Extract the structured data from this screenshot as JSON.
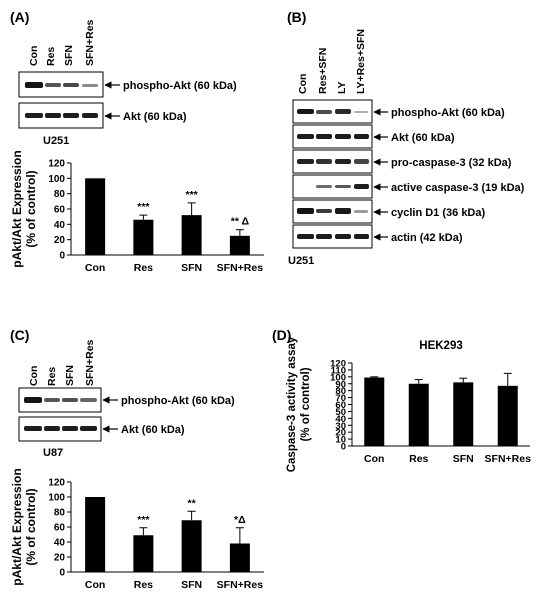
{
  "panels": {
    "A": {
      "label": "(A)",
      "lanes": [
        "Con",
        "Res",
        "SFN",
        "SFN+Res"
      ],
      "blots": [
        "phospho-Akt (60 kDa)",
        "Akt (60 kDa)"
      ],
      "cell_line": "U251"
    },
    "B": {
      "label": "(B)",
      "lanes": [
        "Con",
        "Res+SFN",
        "LY",
        "LY+Res+SFN"
      ],
      "blots": [
        "phospho-Akt (60 kDa)",
        "Akt (60 kDa)",
        "pro-caspase-3 (32 kDa)",
        "active caspase-3 (19 kDa)",
        "cyclin D1 (36 kDa)",
        "actin (42 kDa)"
      ],
      "cell_line": "U251"
    },
    "C": {
      "label": "(C)",
      "lanes": [
        "Con",
        "Res",
        "SFN",
        "SFN+Res"
      ],
      "blots": [
        "phospho-Akt (60 kDa)",
        "Akt (60 kDa)"
      ],
      "cell_line": "U87"
    },
    "D": {
      "label": "(D)"
    }
  },
  "chart_data": [
    {
      "type": "bar",
      "panel": "A",
      "categories": [
        "Con",
        "Res",
        "SFN",
        "SFN+Res"
      ],
      "values": [
        100,
        46,
        52,
        25
      ],
      "errors": [
        0,
        6,
        16,
        8
      ],
      "annotations": [
        "",
        "***",
        "***",
        "** Δ"
      ],
      "ylabel": "pAkt/Akt Expression (% of control)",
      "ylim": [
        0,
        120
      ],
      "yticks": [
        0,
        20,
        40,
        60,
        80,
        100,
        120
      ]
    },
    {
      "type": "bar",
      "panel": "C",
      "categories": [
        "Con",
        "Res",
        "SFN",
        "SFN+Res"
      ],
      "values": [
        100,
        49,
        69,
        38
      ],
      "errors": [
        0,
        10,
        12,
        21
      ],
      "annotations": [
        "",
        "***",
        "**",
        "*Δ"
      ],
      "ylabel": "pAkt/Akt Expression (% of control)",
      "ylim": [
        0,
        120
      ],
      "yticks": [
        0,
        20,
        40,
        60,
        80,
        100,
        120
      ]
    },
    {
      "type": "bar",
      "panel": "D",
      "title": "HEK293",
      "categories": [
        "Con",
        "Res",
        "SFN",
        "SFN+Res"
      ],
      "values": [
        99,
        90,
        92,
        87
      ],
      "errors": [
        1,
        6,
        6,
        18
      ],
      "annotations": [
        "",
        "",
        "",
        ""
      ],
      "ylabel": "Caspase-3 activity assay (% of control)",
      "ylim": [
        0,
        120
      ],
      "yticks": [
        0,
        10,
        20,
        30,
        40,
        50,
        60,
        70,
        80,
        90,
        100,
        110,
        120
      ]
    }
  ]
}
